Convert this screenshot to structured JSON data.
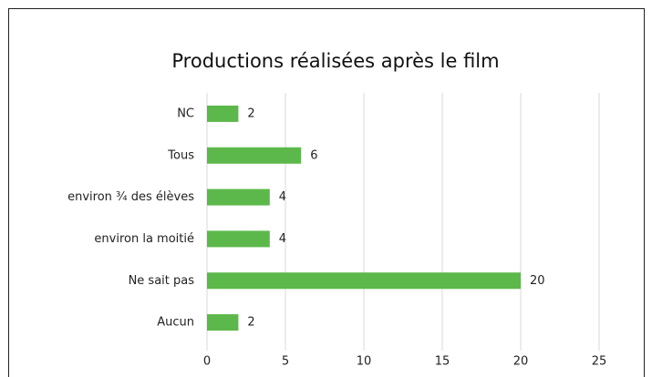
{
  "chart_data": {
    "type": "bar",
    "orientation": "horizontal",
    "title": "Productions réalisées après le film",
    "categories": [
      "NC",
      "Tous",
      "environ ¾ des élèves",
      "environ la moitié",
      "Ne sait pas",
      "Aucun"
    ],
    "values": [
      2,
      6,
      4,
      4,
      20,
      2
    ],
    "color": "#5cb84a",
    "xlim": [
      0,
      25
    ],
    "xticks": [
      0,
      5,
      10,
      15,
      20,
      25
    ],
    "grid": true
  }
}
